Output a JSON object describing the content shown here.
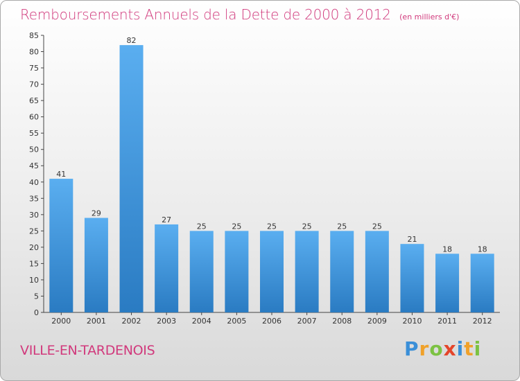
{
  "title": "Remboursements Annuels de la Dette de 2000 à 2012",
  "subtitle": "(en milliers d'€)",
  "town": "VILLE-EN-TARDENOIS",
  "logo": {
    "letters": [
      "P",
      "r",
      "o",
      "x",
      "i",
      "t",
      "i"
    ],
    "colors": [
      "#3a8fd8",
      "#f0a12a",
      "#7cc242",
      "#e4452a",
      "#3a8fd8",
      "#f0a12a",
      "#7cc242"
    ]
  },
  "colors": {
    "bar_top": "#5aaef0",
    "bar_bottom": "#2a7bc2",
    "axis": "#444444",
    "text": "#333333"
  },
  "chart_data": {
    "type": "bar",
    "categories": [
      "2000",
      "2001",
      "2002",
      "2003",
      "2004",
      "2005",
      "2006",
      "2007",
      "2008",
      "2009",
      "2010",
      "2011",
      "2012"
    ],
    "values": [
      41,
      29,
      82,
      27,
      25,
      25,
      25,
      25,
      25,
      25,
      21,
      18,
      18
    ],
    "ylim": [
      0,
      85
    ],
    "yticks": [
      0,
      5,
      10,
      15,
      20,
      25,
      30,
      35,
      40,
      45,
      50,
      55,
      60,
      65,
      70,
      75,
      80,
      85
    ],
    "grid": false,
    "data_labels": true,
    "xlabel": "",
    "ylabel": ""
  }
}
